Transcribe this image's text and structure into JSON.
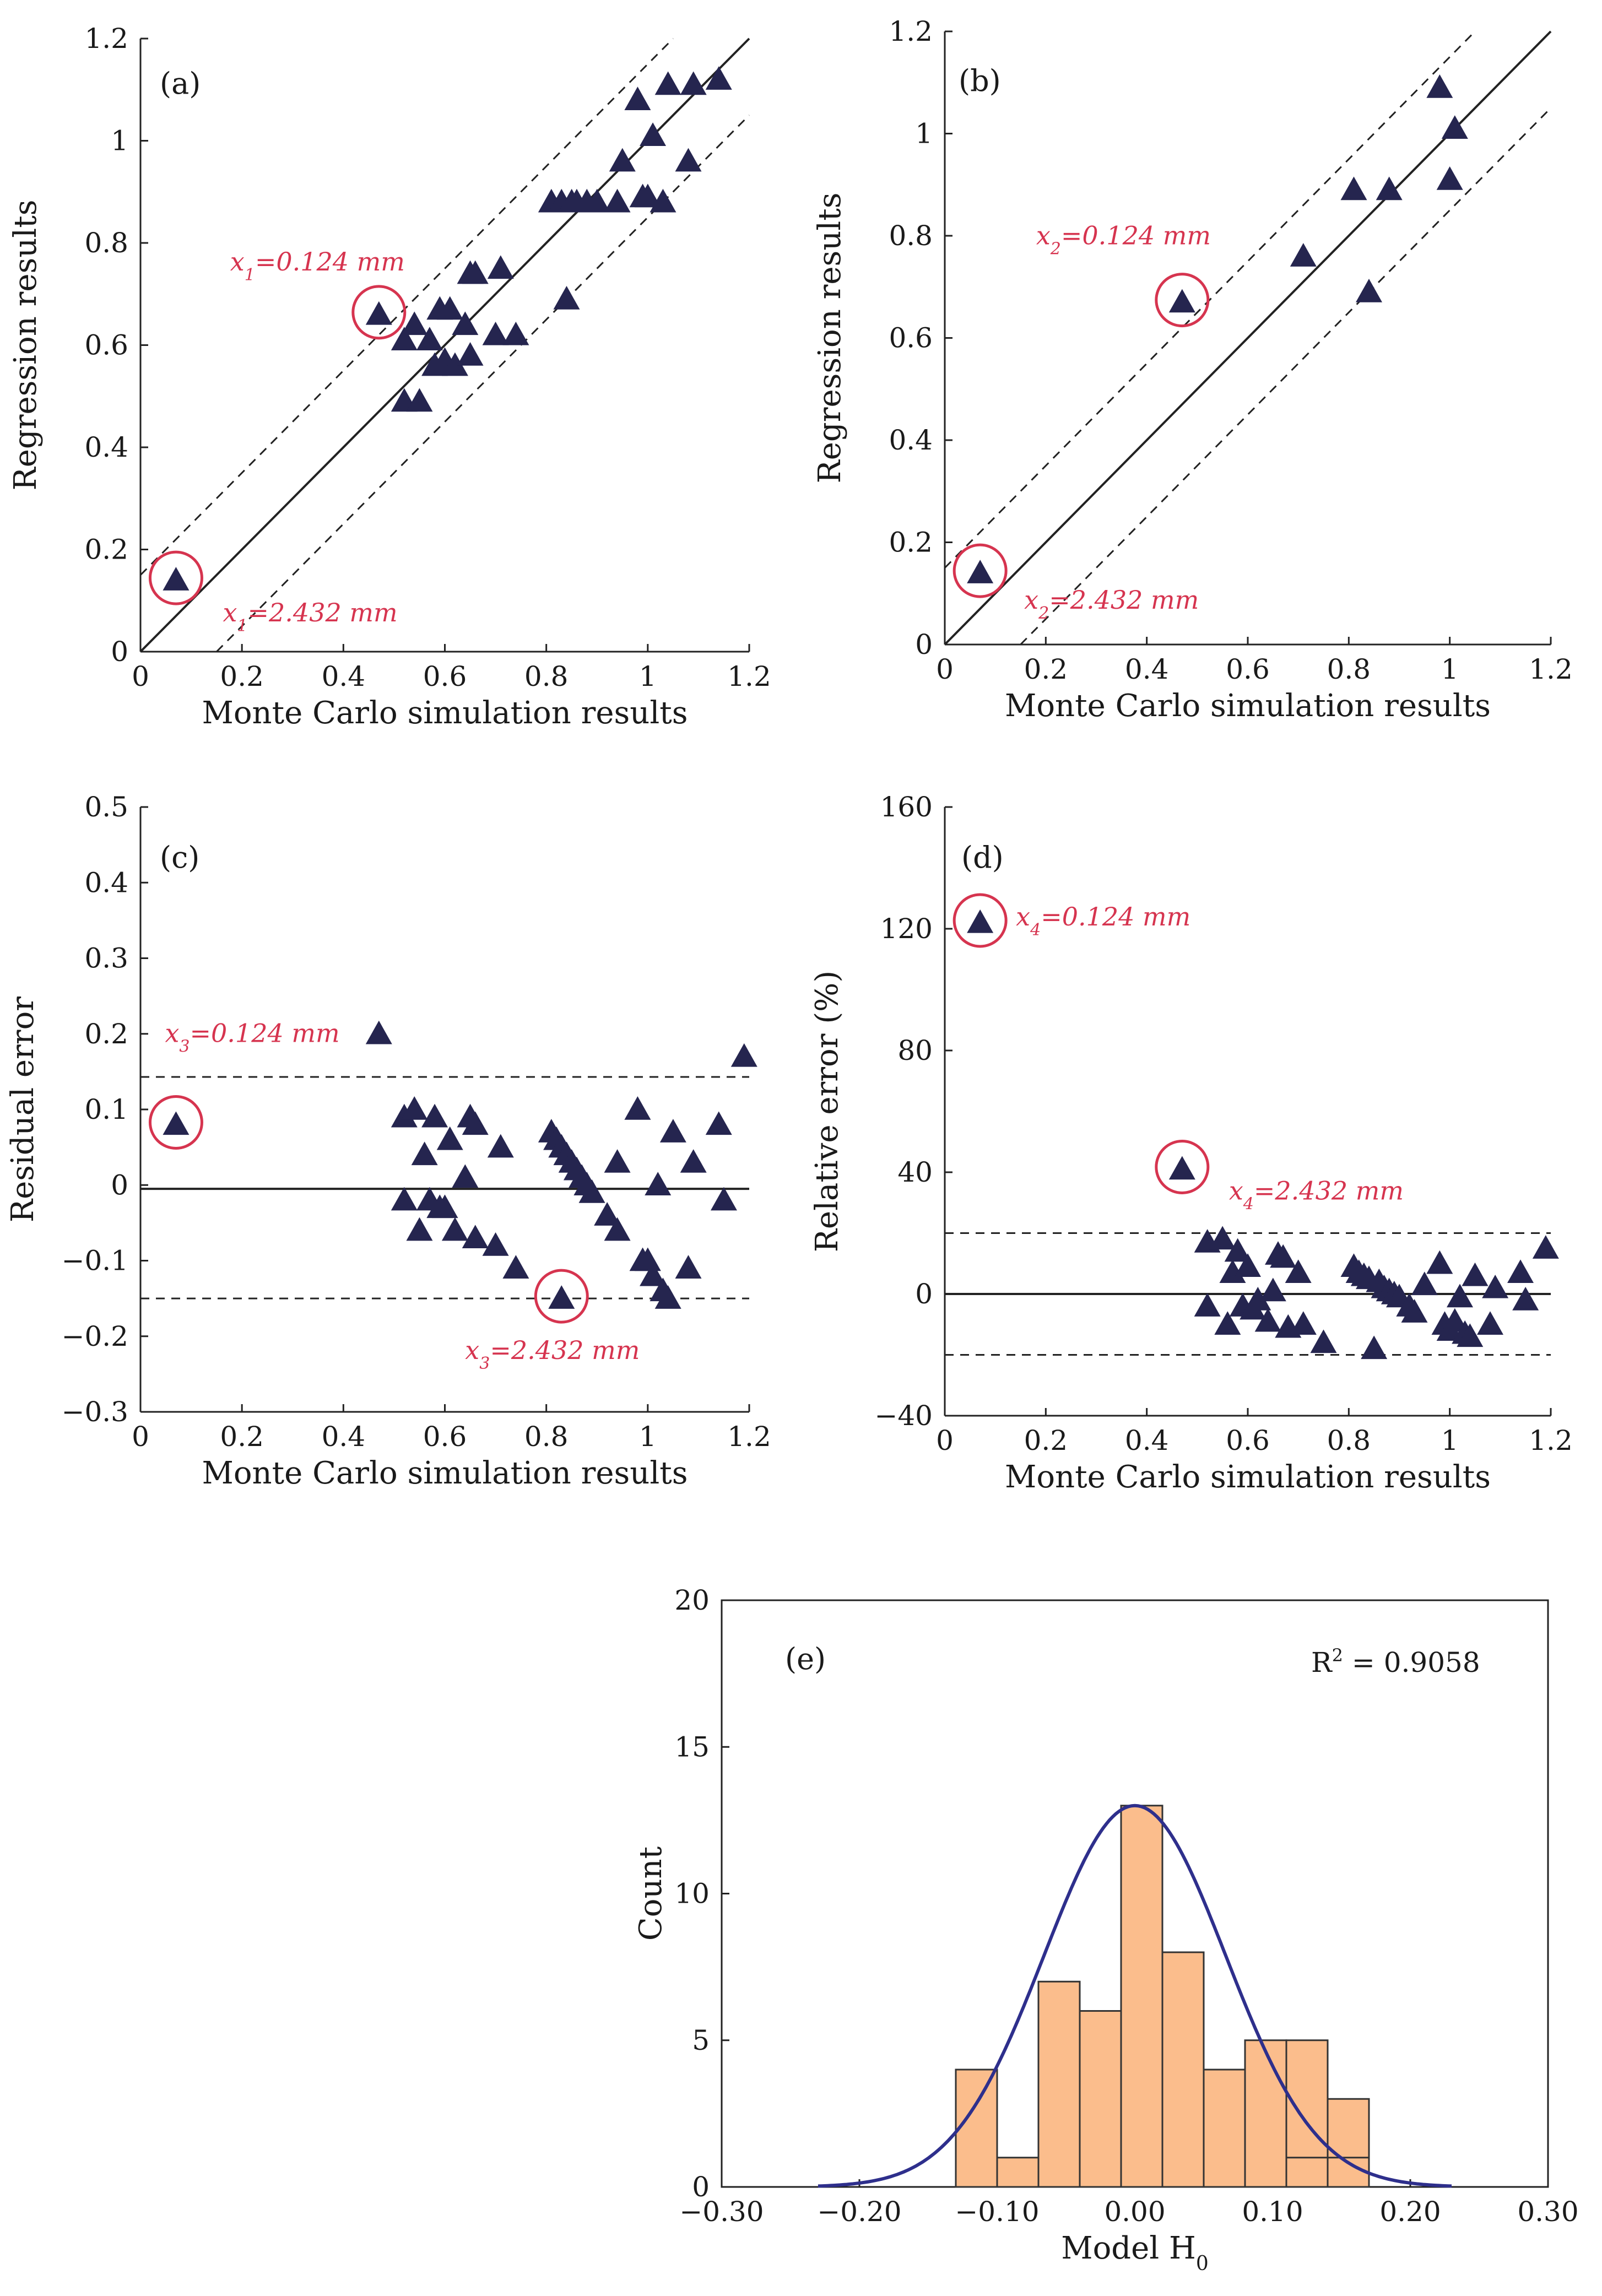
{
  "chart_data": [
    {
      "id": "a",
      "type": "scatter",
      "panel_label": "(a)",
      "xlabel": "Monte Carlo simulation results",
      "ylabel": "Regression results",
      "xlim": [
        0,
        1.2
      ],
      "ylim": [
        0,
        1.2
      ],
      "xticks": [
        0,
        0.2,
        0.4,
        0.6,
        0.8,
        1,
        1.2
      ],
      "yticks": [
        0,
        0.2,
        0.4,
        0.6,
        0.8,
        1,
        1.2
      ],
      "tick_labels_x": [
        "0",
        "0.2",
        "0.4",
        "0.6",
        "0.8",
        "1",
        "1.2"
      ],
      "tick_labels_y": [
        "0",
        "0.2",
        "0.4",
        "0.6",
        "0.8",
        "1",
        "1.2"
      ],
      "reference_lines": [
        {
          "kind": "solid",
          "points": [
            [
              0,
              0
            ],
            [
              1.2,
              1.2
            ]
          ]
        },
        {
          "kind": "dashed",
          "points": [
            [
              0,
              0.15
            ],
            [
              1.05,
              1.2
            ]
          ]
        },
        {
          "kind": "dashed",
          "points": [
            [
              0.15,
              0
            ],
            [
              1.2,
              1.05
            ]
          ]
        }
      ],
      "points": [
        [
          0.07,
          0.14
        ],
        [
          0.47,
          0.66
        ],
        [
          0.52,
          0.61
        ],
        [
          0.52,
          0.49
        ],
        [
          0.54,
          0.64
        ],
        [
          0.55,
          0.49
        ],
        [
          0.57,
          0.61
        ],
        [
          0.58,
          0.56
        ],
        [
          0.59,
          0.67
        ],
        [
          0.6,
          0.57
        ],
        [
          0.61,
          0.67
        ],
        [
          0.62,
          0.56
        ],
        [
          0.64,
          0.64
        ],
        [
          0.65,
          0.58
        ],
        [
          0.65,
          0.74
        ],
        [
          0.66,
          0.74
        ],
        [
          0.7,
          0.62
        ],
        [
          0.71,
          0.75
        ],
        [
          0.74,
          0.62
        ],
        [
          0.81,
          0.88
        ],
        [
          0.83,
          0.88
        ],
        [
          0.84,
          0.69
        ],
        [
          0.85,
          0.88
        ],
        [
          0.86,
          0.88
        ],
        [
          0.88,
          0.88
        ],
        [
          0.9,
          0.88
        ],
        [
          0.94,
          0.88
        ],
        [
          0.95,
          0.96
        ],
        [
          0.98,
          1.08
        ],
        [
          0.99,
          0.89
        ],
        [
          1,
          0.89
        ],
        [
          1.01,
          1.01
        ],
        [
          1.03,
          0.88
        ],
        [
          1.04,
          1.11
        ],
        [
          1.08,
          0.96
        ],
        [
          1.09,
          1.11
        ],
        [
          1.14,
          1.12
        ]
      ],
      "annotations": [
        {
          "base": "x",
          "sub": "1",
          "text": "=0.124 mm",
          "x": 0.47,
          "y": 0.66,
          "circled": true
        },
        {
          "base": "x",
          "sub": "1",
          "text": "=2.432 mm",
          "x": 0.07,
          "y": 0.14,
          "circled": true
        }
      ]
    },
    {
      "id": "b",
      "type": "scatter",
      "panel_label": "(b)",
      "xlabel": "Monte Carlo simulation results",
      "ylabel": "Regression results",
      "xlim": [
        0,
        1.2
      ],
      "ylim": [
        0,
        1.2
      ],
      "xticks": [
        0,
        0.2,
        0.4,
        0.6,
        0.8,
        1,
        1.2
      ],
      "yticks": [
        0,
        0.2,
        0.4,
        0.6,
        0.8,
        1,
        1.2
      ],
      "tick_labels_x": [
        "0",
        "0.2",
        "0.4",
        "0.6",
        "0.8",
        "1",
        "1.2"
      ],
      "tick_labels_y": [
        "0",
        "0.2",
        "0.4",
        "0.6",
        "0.8",
        "1",
        "1.2"
      ],
      "reference_lines": [
        {
          "kind": "solid",
          "points": [
            [
              0,
              0
            ],
            [
              1.2,
              1.2
            ]
          ]
        },
        {
          "kind": "dashed",
          "points": [
            [
              0,
              0.15
            ],
            [
              1.05,
              1.2
            ]
          ]
        },
        {
          "kind": "dashed",
          "points": [
            [
              0.15,
              0
            ],
            [
              1.2,
              1.05
            ]
          ]
        }
      ],
      "points": [
        [
          0.07,
          0.14
        ],
        [
          0.47,
          0.67
        ],
        [
          0.71,
          0.76
        ],
        [
          0.81,
          0.89
        ],
        [
          0.84,
          0.69
        ],
        [
          0.88,
          0.89
        ],
        [
          0.98,
          1.09
        ],
        [
          1,
          0.91
        ],
        [
          1.01,
          1.01
        ]
      ],
      "annotations": [
        {
          "base": "x",
          "sub": "2",
          "text": "=0.124 mm",
          "x": 0.47,
          "y": 0.67,
          "circled": true
        },
        {
          "base": "x",
          "sub": "2",
          "text": "=2.432 mm",
          "x": 0.07,
          "y": 0.14,
          "circled": true
        }
      ]
    },
    {
      "id": "c",
      "type": "scatter",
      "panel_label": "(c)",
      "xlabel": "Monte Carlo simulation results",
      "ylabel": "Residual error",
      "xlim": [
        0,
        1.2
      ],
      "ylim": [
        -0.3,
        0.5
      ],
      "xticks": [
        0,
        0.2,
        0.4,
        0.6,
        0.8,
        1,
        1.2
      ],
      "yticks": [
        -0.3,
        -0.2,
        -0.1,
        0,
        0.1,
        0.2,
        0.3,
        0.4,
        0.5
      ],
      "tick_labels_x": [
        "0",
        "0.2",
        "0.4",
        "0.6",
        "0.8",
        "1",
        "1.2"
      ],
      "tick_labels_y": [
        "−0.3",
        "−0.2",
        "−0.1",
        "0",
        "0.1",
        "0.2",
        "0.3",
        "0.4",
        "0.5"
      ],
      "reference_lines": [
        {
          "kind": "solid",
          "points": [
            [
              0,
              -0.005
            ],
            [
              1.2,
              -0.005
            ]
          ]
        },
        {
          "kind": "dashed",
          "points": [
            [
              0,
              0.143
            ],
            [
              1.2,
              0.143
            ]
          ]
        },
        {
          "kind": "dashed",
          "points": [
            [
              0,
              -0.15
            ],
            [
              1.2,
              -0.15
            ]
          ]
        }
      ],
      "points": [
        [
          0.07,
          0.08
        ],
        [
          0.47,
          0.2
        ],
        [
          0.52,
          0.09
        ],
        [
          0.52,
          -0.02
        ],
        [
          0.54,
          0.1
        ],
        [
          0.55,
          -0.06
        ],
        [
          0.56,
          0.04
        ],
        [
          0.57,
          -0.02
        ],
        [
          0.58,
          0.09
        ],
        [
          0.59,
          -0.03
        ],
        [
          0.6,
          -0.03
        ],
        [
          0.61,
          0.06
        ],
        [
          0.62,
          -0.06
        ],
        [
          0.64,
          0.01
        ],
        [
          0.65,
          0.09
        ],
        [
          0.66,
          0.08
        ],
        [
          0.66,
          -0.07
        ],
        [
          0.7,
          -0.08
        ],
        [
          0.71,
          0.05
        ],
        [
          0.74,
          -0.11
        ],
        [
          0.81,
          0.07
        ],
        [
          0.82,
          0.06
        ],
        [
          0.83,
          0.05
        ],
        [
          0.83,
          -0.15
        ],
        [
          0.84,
          0.04
        ],
        [
          0.85,
          0.03
        ],
        [
          0.86,
          0.02
        ],
        [
          0.87,
          0.01
        ],
        [
          0.88,
          0
        ],
        [
          0.89,
          -0.01
        ],
        [
          0.92,
          -0.04
        ],
        [
          0.94,
          -0.06
        ],
        [
          0.94,
          0.03
        ],
        [
          0.98,
          0.1
        ],
        [
          0.99,
          -0.1
        ],
        [
          1,
          -0.1
        ],
        [
          1.01,
          -0.12
        ],
        [
          1.02,
          0
        ],
        [
          1.03,
          -0.14
        ],
        [
          1.04,
          -0.15
        ],
        [
          1.05,
          0.07
        ],
        [
          1.08,
          -0.11
        ],
        [
          1.09,
          0.03
        ],
        [
          1.14,
          0.08
        ],
        [
          1.15,
          -0.02
        ],
        [
          1.19,
          0.17
        ]
      ],
      "annotations": [
        {
          "base": "x",
          "sub": "3",
          "text": "=0.124 mm",
          "x": 0.07,
          "y": 0.08,
          "circled": true
        },
        {
          "base": "x",
          "sub": "3",
          "text": "=2.432 mm",
          "x": 0.83,
          "y": -0.15,
          "circled": true
        }
      ]
    },
    {
      "id": "d",
      "type": "scatter",
      "panel_label": "(d)",
      "xlabel": "Monte Carlo simulation results",
      "ylabel": "Relative error (%)",
      "xlim": [
        0,
        1.2
      ],
      "ylim": [
        -40,
        160
      ],
      "xticks": [
        0,
        0.2,
        0.4,
        0.6,
        0.8,
        1,
        1.2
      ],
      "yticks": [
        -40,
        0,
        40,
        80,
        120,
        160
      ],
      "tick_labels_x": [
        "0",
        "0.2",
        "0.4",
        "0.6",
        "0.8",
        "1",
        "1.2"
      ],
      "tick_labels_y": [
        "−40",
        "0",
        "40",
        "80",
        "120",
        "160"
      ],
      "reference_lines": [
        {
          "kind": "solid",
          "points": [
            [
              0,
              0
            ],
            [
              1.2,
              0
            ]
          ]
        },
        {
          "kind": "dashed",
          "points": [
            [
              0,
              20
            ],
            [
              1.2,
              20
            ]
          ]
        },
        {
          "kind": "dashed",
          "points": [
            [
              0,
              -20
            ],
            [
              1.2,
              -20
            ]
          ]
        }
      ],
      "points": [
        [
          0.07,
          122
        ],
        [
          0.47,
          41
        ],
        [
          0.52,
          17
        ],
        [
          0.52,
          -4
        ],
        [
          0.55,
          18
        ],
        [
          0.56,
          -10
        ],
        [
          0.57,
          7
        ],
        [
          0.58,
          14
        ],
        [
          0.59,
          -4
        ],
        [
          0.6,
          9
        ],
        [
          0.61,
          -5
        ],
        [
          0.62,
          -2
        ],
        [
          0.64,
          -9
        ],
        [
          0.65,
          1
        ],
        [
          0.66,
          13
        ],
        [
          0.67,
          12
        ],
        [
          0.68,
          -11
        ],
        [
          0.7,
          7
        ],
        [
          0.71,
          -10
        ],
        [
          0.75,
          -16
        ],
        [
          0.81,
          9
        ],
        [
          0.82,
          7
        ],
        [
          0.83,
          6
        ],
        [
          0.84,
          5
        ],
        [
          0.85,
          -18
        ],
        [
          0.86,
          4
        ],
        [
          0.87,
          2
        ],
        [
          0.88,
          1
        ],
        [
          0.89,
          0
        ],
        [
          0.9,
          -1
        ],
        [
          0.92,
          -4
        ],
        [
          0.93,
          -6
        ],
        [
          0.95,
          3
        ],
        [
          0.98,
          10
        ],
        [
          0.99,
          -10
        ],
        [
          1,
          -12
        ],
        [
          1.01,
          -9
        ],
        [
          1.02,
          -1
        ],
        [
          1.03,
          -13
        ],
        [
          1.04,
          -14
        ],
        [
          1.05,
          6
        ],
        [
          1.08,
          -10
        ],
        [
          1.09,
          2
        ],
        [
          1.14,
          7
        ],
        [
          1.15,
          -2
        ],
        [
          1.19,
          15
        ]
      ],
      "annotations": [
        {
          "base": "x",
          "sub": "4",
          "text": "=0.124 mm",
          "x": 0.07,
          "y": 122,
          "circled": true
        },
        {
          "base": "x",
          "sub": "4",
          "text": "=2.432 mm",
          "x": 0.47,
          "y": 41,
          "circled": true
        }
      ]
    },
    {
      "id": "e",
      "type": "bar",
      "panel_label": "(e)",
      "xlabel": "Model H",
      "xlabel_sub": "0",
      "ylabel": "Count",
      "xlim": [
        -0.3,
        0.3
      ],
      "ylim": [
        0,
        20
      ],
      "xticks": [
        -0.3,
        -0.2,
        -0.1,
        0,
        0.1,
        0.2,
        0.3
      ],
      "yticks": [
        0,
        5,
        10,
        15,
        20
      ],
      "tick_labels_x": [
        "−0.30",
        "−0.20",
        "−0.10",
        "0.00",
        "0.10",
        "0.20",
        "0.30"
      ],
      "tick_labels_y": [
        "0",
        "5",
        "10",
        "15",
        "20"
      ],
      "bin_width": 0.03,
      "bins_start": [
        -0.13,
        -0.1,
        -0.07,
        -0.04,
        -0.01,
        0.02,
        0.05,
        0.08,
        0.11,
        0.14
      ],
      "counts": [
        4,
        1,
        7,
        6,
        13,
        8,
        4,
        5,
        5,
        3
      ],
      "extra_bins": [
        {
          "start": 0.11,
          "count": 1
        },
        {
          "start": 0.14,
          "count": 1
        }
      ],
      "normal_fit": {
        "mean": 0.0,
        "sd": 0.066,
        "peak": 13,
        "x_range": [
          -0.23,
          0.23
        ]
      },
      "r2_label": "R",
      "r2_sup": "2",
      "r2_value": " = 0.9058"
    }
  ]
}
